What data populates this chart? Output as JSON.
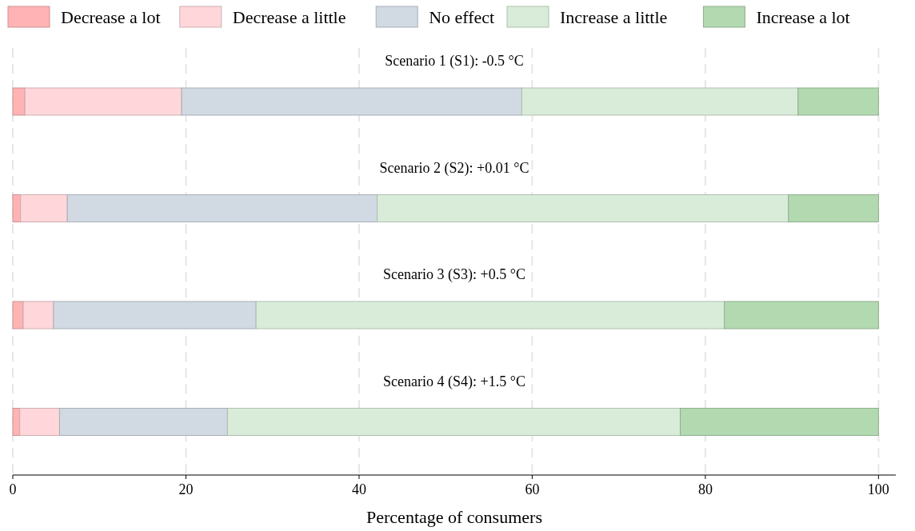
{
  "chart_data": {
    "type": "bar",
    "orientation": "horizontal",
    "stacked": true,
    "xlabel": "Percentage of consumers",
    "categories": [
      "Scenario 1 (S1): -0.5 °C",
      "Scenario 2 (S2): +0.01 °C",
      "Scenario 3 (S3): +0.5 °C",
      "Scenario 4 (S4): +1.5 °C"
    ],
    "series": [
      {
        "name": "Decrease a lot",
        "color": "#ffb3b5",
        "values": [
          1.4,
          0.9,
          1.2,
          0.8
        ]
      },
      {
        "name": "Decrease a little",
        "color": "#ffd7db",
        "values": [
          18.1,
          5.4,
          3.5,
          4.6
        ]
      },
      {
        "name": "No effect",
        "color": "#d1d9e3",
        "values": [
          39.3,
          35.8,
          23.4,
          19.4
        ]
      },
      {
        "name": "Increase a little",
        "color": "#d9ecd9",
        "values": [
          31.9,
          47.5,
          54.1,
          52.3
        ]
      },
      {
        "name": "Increase a lot",
        "color": "#b2d9b0",
        "values": [
          9.3,
          10.4,
          17.8,
          22.9
        ]
      }
    ],
    "xlim": [
      0,
      102
    ],
    "xticks": [
      0,
      20,
      40,
      60,
      80,
      100
    ],
    "grid": "x",
    "legend": "top"
  }
}
